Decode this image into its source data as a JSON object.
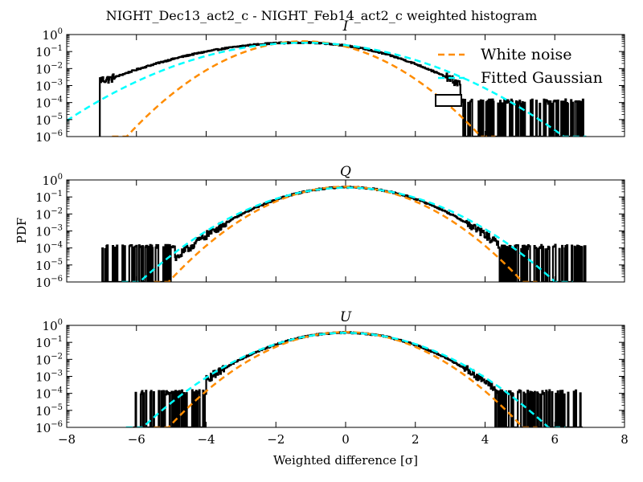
{
  "figure": {
    "suptitle": "NIGHT_Dec13_act2_c - NIGHT_Feb14_act2_c weighted histogram",
    "xlabel": "Weighted difference [σ]",
    "ylabel": "PDF"
  },
  "chart_data": [
    {
      "type": "line",
      "title": "I",
      "xlim": [
        -8,
        8
      ],
      "ylim": [
        1e-06,
        1
      ],
      "yscale": "log",
      "legend_position": "upper-right",
      "series": [
        {
          "name": "",
          "kind": "histogram",
          "color": "#000000",
          "x_min": -7.05,
          "x_max": 6.9,
          "center": -1.25,
          "sigma_left": 1.75,
          "sigma_right": 1.35,
          "peak": 0.34,
          "dense_until": 3.3
        },
        {
          "name": "White noise",
          "kind": "gaussian",
          "color": "#ff8c00",
          "mu": -1.2,
          "sigma": 1.0,
          "peak": 0.4
        },
        {
          "name": "Fitted Gaussian",
          "kind": "gaussian",
          "color": "#00ffff",
          "mu": -1.2,
          "sigma": 1.48,
          "peak": 0.33
        }
      ]
    },
    {
      "type": "line",
      "title": "Q",
      "xlim": [
        -8,
        8
      ],
      "ylim": [
        1e-06,
        1
      ],
      "yscale": "log",
      "series": [
        {
          "name": "",
          "kind": "histogram",
          "color": "#000000",
          "x_min": -7.0,
          "x_max": 6.9,
          "center": 0.05,
          "sigma_left": 1.12,
          "sigma_right": 1.1,
          "peak": 0.37,
          "dense_from": -4.9,
          "dense_until": 4.4
        },
        {
          "name": "",
          "kind": "gaussian",
          "color": "#ff8c00",
          "mu": 0.0,
          "sigma": 1.0,
          "peak": 0.4
        },
        {
          "name": "",
          "kind": "gaussian",
          "color": "#00ffff",
          "mu": 0.05,
          "sigma": 1.18,
          "peak": 0.35
        }
      ]
    },
    {
      "type": "line",
      "title": "U",
      "xlim": [
        -8,
        8
      ],
      "ylim": [
        1e-06,
        1
      ],
      "yscale": "log",
      "series": [
        {
          "name": "",
          "kind": "histogram",
          "color": "#000000",
          "x_min": -6.1,
          "x_max": 6.8,
          "center": 0.0,
          "sigma_left": 1.12,
          "sigma_right": 1.1,
          "peak": 0.37,
          "dense_from": -4.0,
          "dense_until": 4.3
        },
        {
          "name": "",
          "kind": "gaussian",
          "color": "#ff8c00",
          "mu": 0.0,
          "sigma": 1.0,
          "peak": 0.4
        },
        {
          "name": "",
          "kind": "gaussian",
          "color": "#00ffff",
          "mu": 0.0,
          "sigma": 1.15,
          "peak": 0.36
        }
      ]
    }
  ],
  "legend": {
    "items": [
      {
        "label": "White noise",
        "color": "#ff8c00"
      },
      {
        "label": "Fitted Gaussian",
        "color": "#00ffff"
      }
    ]
  }
}
